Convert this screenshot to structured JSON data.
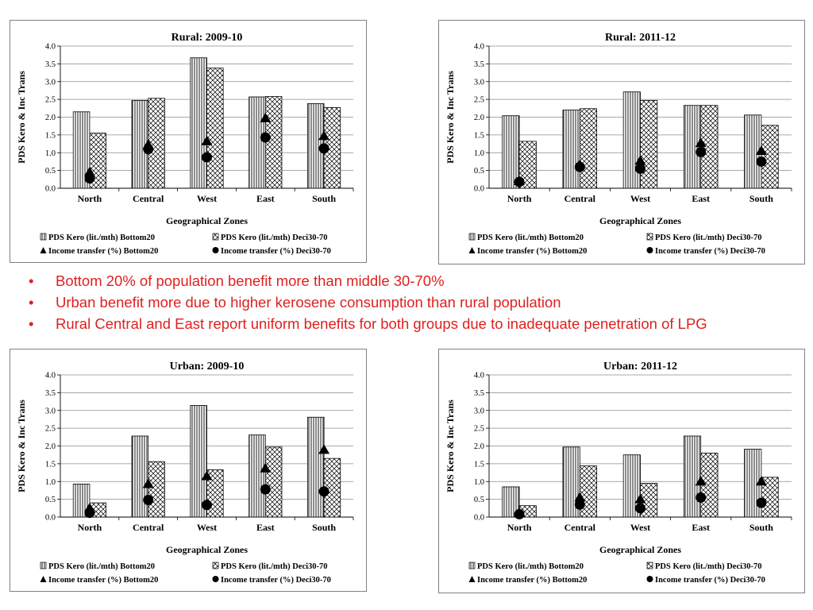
{
  "bullets": [
    "Bottom 20% of population benefit more than middle 30-70%",
    "Urban benefit more due to higher kerosene consumption than rural population",
    "Rural Central and East report uniform benefits for both groups due to inadequate penetration of LPG"
  ],
  "chart_data": [
    {
      "type": "bar",
      "title": "Rural: 2009-10",
      "xlabel": "Geographical Zones",
      "ylabel": "PDS Kero & Inc Trans",
      "ylim": [
        0,
        4
      ],
      "yticks": [
        "0.0",
        "0.5",
        "1.0",
        "1.5",
        "2.0",
        "2.5",
        "3.0",
        "3.5",
        "4.0"
      ],
      "grid": true,
      "legend_position": "bottom",
      "categories": [
        "North",
        "Central",
        "West",
        "East",
        "South"
      ],
      "series": [
        {
          "name": "PDS Kero (lit./mth) Bottom20",
          "mark": "bar-vertical-stripes",
          "values": [
            2.15,
            2.47,
            3.67,
            2.57,
            2.38
          ]
        },
        {
          "name": "PDS Kero (lit./mth) Deci30-70",
          "mark": "bar-crosshatch",
          "values": [
            1.55,
            2.53,
            3.38,
            2.58,
            2.27
          ]
        },
        {
          "name": "Income transfer (%) Bottom20",
          "mark": "triangle",
          "values": [
            0.45,
            1.22,
            1.32,
            1.97,
            1.47
          ]
        },
        {
          "name": "Income transfer (%) Deci30-70",
          "mark": "circle",
          "values": [
            0.28,
            1.1,
            0.87,
            1.43,
            1.12
          ]
        }
      ]
    },
    {
      "type": "bar",
      "title": "Rural: 2011-12",
      "xlabel": "Geographical Zones",
      "ylabel": "PDS Kero & Inc Trans",
      "ylim": [
        0,
        4
      ],
      "yticks": [
        "0.0",
        "0.5",
        "1.0",
        "1.5",
        "2.0",
        "2.5",
        "3.0",
        "3.5",
        "4.0"
      ],
      "grid": true,
      "legend_position": "bottom",
      "categories": [
        "North",
        "Central",
        "West",
        "East",
        "South"
      ],
      "series": [
        {
          "name": "PDS Kero (lit./mth) Bottom20",
          "mark": "bar-vertical-stripes",
          "values": [
            2.04,
            2.2,
            2.71,
            2.33,
            2.06
          ]
        },
        {
          "name": "PDS Kero (lit./mth) Deci30-70",
          "mark": "bar-crosshatch",
          "values": [
            1.32,
            2.24,
            2.47,
            2.33,
            1.77
          ]
        },
        {
          "name": "Income transfer (%) Bottom20",
          "mark": "triangle",
          "values": [
            0.2,
            0.66,
            0.77,
            1.27,
            1.05
          ]
        },
        {
          "name": "Income transfer (%) Deci30-70",
          "mark": "circle",
          "values": [
            0.18,
            0.6,
            0.55,
            1.02,
            0.75
          ]
        }
      ]
    },
    {
      "type": "bar",
      "title": "Urban: 2009-10",
      "xlabel": "Geographical Zones",
      "ylabel": "PDS Kero & Inc Trans",
      "ylim": [
        0,
        4
      ],
      "yticks": [
        "0.0",
        "0.5",
        "1.0",
        "1.5",
        "2.0",
        "2.5",
        "3.0",
        "3.5",
        "4.0"
      ],
      "grid": true,
      "legend_position": "bottom",
      "categories": [
        "North",
        "Central",
        "West",
        "East",
        "South"
      ],
      "series": [
        {
          "name": "PDS Kero (lit./mth) Bottom20",
          "mark": "bar-vertical-stripes",
          "values": [
            0.93,
            2.28,
            3.14,
            2.31,
            2.81
          ]
        },
        {
          "name": "PDS Kero (lit./mth) Deci30-70",
          "mark": "bar-crosshatch",
          "values": [
            0.4,
            1.56,
            1.33,
            1.97,
            1.65
          ]
        },
        {
          "name": "Income transfer (%) Bottom20",
          "mark": "triangle",
          "values": [
            0.25,
            0.93,
            1.15,
            1.37,
            1.89
          ]
        },
        {
          "name": "Income transfer (%) Deci30-70",
          "mark": "circle",
          "values": [
            0.12,
            0.48,
            0.34,
            0.78,
            0.72
          ]
        }
      ]
    },
    {
      "type": "bar",
      "title": "Urban: 2011-12",
      "xlabel": "Geographical Zones",
      "ylabel": "PDS Kero & Inc Trans",
      "ylim": [
        0,
        4
      ],
      "yticks": [
        "0.0",
        "0.5",
        "1.0",
        "1.5",
        "2.0",
        "2.5",
        "3.0",
        "3.5",
        "4.0"
      ],
      "grid": true,
      "legend_position": "bottom",
      "categories": [
        "North",
        "Central",
        "West",
        "East",
        "South"
      ],
      "series": [
        {
          "name": "PDS Kero (lit./mth) Bottom20",
          "mark": "bar-vertical-stripes",
          "values": [
            0.85,
            1.97,
            1.75,
            2.28,
            1.91
          ]
        },
        {
          "name": "PDS Kero (lit./mth) Deci30-70",
          "mark": "bar-crosshatch",
          "values": [
            0.32,
            1.44,
            0.95,
            1.8,
            1.12
          ]
        },
        {
          "name": "Income transfer (%) Bottom20",
          "mark": "triangle",
          "values": [
            0.12,
            0.55,
            0.5,
            1.0,
            1.0
          ]
        },
        {
          "name": "Income transfer (%) Deci30-70",
          "mark": "circle",
          "values": [
            0.08,
            0.35,
            0.25,
            0.55,
            0.4
          ]
        }
      ]
    }
  ]
}
